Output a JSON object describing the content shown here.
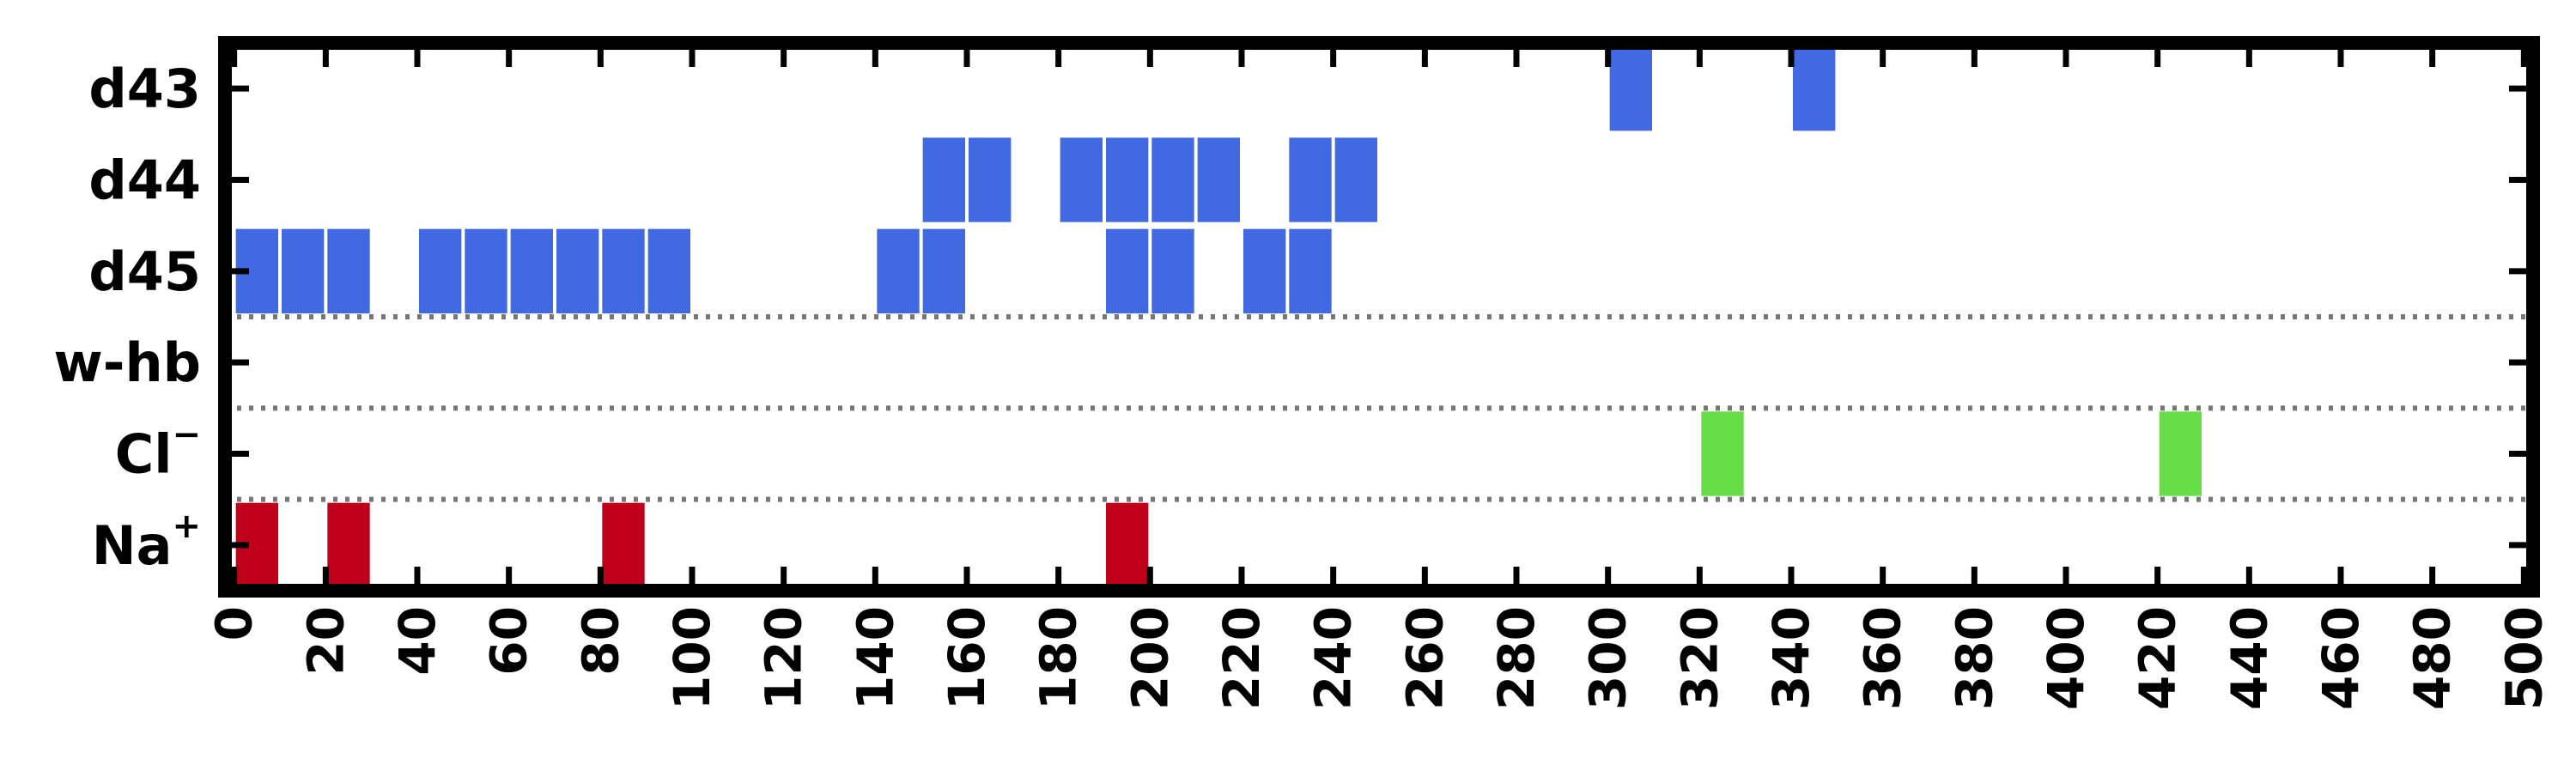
{
  "chart_data": {
    "type": "heatmap",
    "title": "",
    "xlabel": "",
    "ylabel": "",
    "xlim": [
      -2,
      502
    ],
    "x_ticks": [
      0,
      20,
      40,
      60,
      80,
      100,
      120,
      140,
      160,
      180,
      200,
      220,
      240,
      260,
      280,
      300,
      320,
      340,
      360,
      380,
      400,
      420,
      440,
      460,
      480,
      500
    ],
    "x_tick_labels": [
      "0",
      "20",
      "40",
      "60",
      "80",
      "100",
      "120",
      "140",
      "160",
      "180",
      "200",
      "220",
      "240",
      "260",
      "280",
      "300",
      "320",
      "340",
      "360",
      "380",
      "400",
      "420",
      "440",
      "460",
      "480",
      "500"
    ],
    "categories": [
      {
        "label": "d43",
        "superscript": ""
      },
      {
        "label": "d44",
        "superscript": ""
      },
      {
        "label": "d45",
        "superscript": ""
      },
      {
        "label": "w-hb",
        "superscript": ""
      },
      {
        "label": "Cl",
        "superscript": "−"
      },
      {
        "label": "Na",
        "superscript": "+"
      }
    ],
    "bin_width": 10,
    "separators_after": [
      "d45",
      "w-hb",
      "Cl"
    ],
    "grid": false,
    "series": [
      {
        "row": "d43",
        "color": "#4169e1",
        "x": [
          300,
          340
        ]
      },
      {
        "row": "d44",
        "color": "#4169e1",
        "x": [
          150,
          160,
          180,
          190,
          200,
          210,
          230,
          240
        ]
      },
      {
        "row": "d45",
        "color": "#4169e1",
        "x": [
          0,
          10,
          20,
          40,
          50,
          60,
          70,
          80,
          90,
          140,
          150,
          190,
          200,
          220,
          230
        ]
      },
      {
        "row": "w-hb",
        "color": "#4169e1",
        "x": []
      },
      {
        "row": "Cl",
        "color": "#66dd44",
        "x": [
          320,
          420
        ]
      },
      {
        "row": "Na",
        "color": "#c0001a",
        "x": [
          0,
          20,
          80,
          190
        ]
      }
    ]
  },
  "colors": {
    "frame": "#000000",
    "separator": "#777777",
    "d_rows": "#4169e1",
    "chloride": "#66dd44",
    "sodium": "#c0001a"
  }
}
